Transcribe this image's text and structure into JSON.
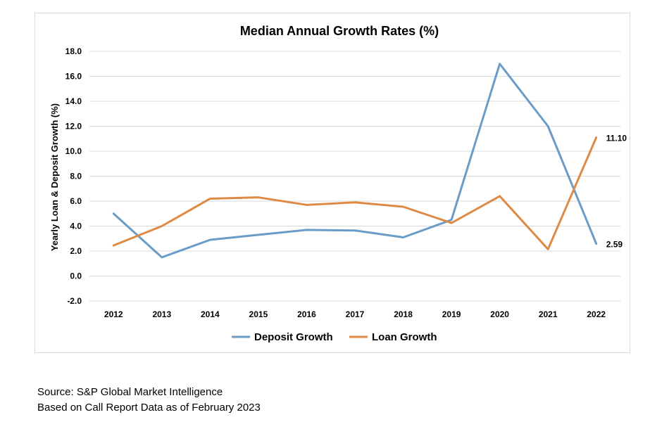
{
  "chart_data": {
    "type": "line",
    "title": "Median Annual Growth Rates (%)",
    "xlabel": "",
    "ylabel": "Yearly Loan & Deposit Growth (%)",
    "ylim": [
      -2.0,
      18.0
    ],
    "yticks": [
      "-2.0",
      "0.0",
      "2.0",
      "4.0",
      "6.0",
      "8.0",
      "10.0",
      "12.0",
      "14.0",
      "16.0",
      "18.0"
    ],
    "categories": [
      "2012",
      "2013",
      "2014",
      "2015",
      "2016",
      "2017",
      "2018",
      "2019",
      "2020",
      "2021",
      "2022"
    ],
    "series": [
      {
        "name": "Deposit Growth",
        "color": "#6a9cc7",
        "values": [
          5.0,
          1.5,
          2.9,
          3.3,
          3.7,
          3.65,
          3.1,
          4.5,
          17.0,
          12.0,
          2.59
        ],
        "end_label": "2.59"
      },
      {
        "name": "Loan Growth",
        "color": "#dd8a45",
        "values": [
          2.45,
          4.0,
          6.2,
          6.3,
          5.7,
          5.9,
          5.55,
          4.25,
          6.4,
          2.15,
          11.1
        ],
        "end_label": "11.10"
      }
    ],
    "grid": true,
    "legend": "bottom"
  },
  "footer": {
    "source": "Source: S&P Global Market Intelligence",
    "note": "Based on Call Report Data as of February 2023"
  }
}
